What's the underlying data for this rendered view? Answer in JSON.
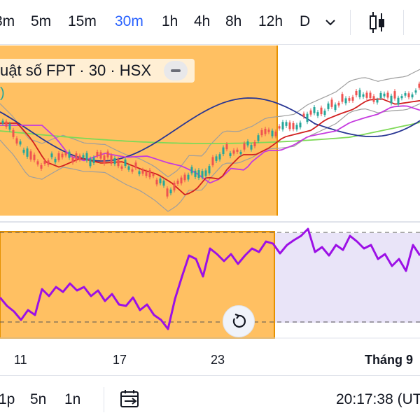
{
  "toolbar": {
    "timeframes": [
      "3m",
      "5m",
      "15m",
      "30m",
      "1h",
      "4h",
      "8h",
      "12h",
      "D"
    ],
    "active_timeframe": "30m"
  },
  "legend": {
    "title": "uật số FPT · 30 · HSX",
    "second_line": ")"
  },
  "x_axis": {
    "labels": [
      "11",
      "17",
      "23",
      "Tháng 9"
    ]
  },
  "bottom": {
    "ranges": [
      "1p",
      "5n",
      "1n"
    ],
    "clock": "20:17:38 (UT"
  },
  "colors": {
    "highlight": "#ffa726",
    "future_zone": "#e3ddf6",
    "up": "#26a69a",
    "down": "#ef5350",
    "rsi": "#9c10e6",
    "ma_red": "#d11f1f",
    "ma_magenta": "#c53adf",
    "ma_navy": "#283593",
    "ma_green": "#7ed957",
    "bands": "#9e9e9e",
    "accent": "#2962ff"
  },
  "icons": {
    "chevron": "chevron-down-icon",
    "chart_type": "candlestick-icon",
    "goto_date": "calendar-arrow-icon",
    "reset": "reset-icon"
  }
}
